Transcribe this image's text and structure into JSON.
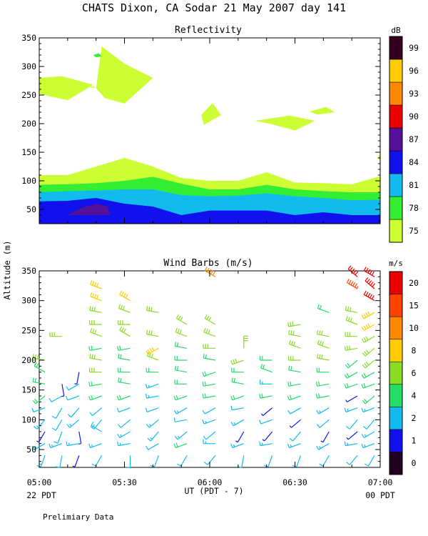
{
  "header": {
    "title": "CHATS Dixon, CA  Sodar  21 May 2007  day 141"
  },
  "footer": {
    "left_date": "22 PDT",
    "right_date": "00 PDT",
    "note": "Prelimiary Data"
  },
  "palette": {
    "reflectivity": [
      "#ccff33",
      "#33ee33",
      "#11bbee",
      "#1111ee",
      "#551199",
      "#ee0000",
      "#ff8800",
      "#ffcc00",
      "#330022"
    ],
    "wind": [
      "#220022",
      "#1111ee",
      "#11bbee",
      "#22dd66",
      "#88dd22",
      "#ffcc00",
      "#ff8800",
      "#ff4400",
      "#ee0000"
    ]
  },
  "chart_data": [
    {
      "type": "heatmap",
      "title": "Reflectivity",
      "xlabel": "UT  (PDT - 7)",
      "ylabel": "Altitude  (m)",
      "x_range": [
        "05:00",
        "07:00"
      ],
      "ylim": [
        25,
        350
      ],
      "yticks": [
        50,
        100,
        150,
        200,
        250,
        300,
        350
      ],
      "xticks": [
        "05:00",
        "05:30",
        "06:00",
        "06:30",
        "07:00"
      ],
      "colorbar": {
        "unit": "dB",
        "levels": [
          75,
          78,
          81,
          84,
          87,
          90,
          93,
          96,
          99
        ]
      },
      "bands": [
        {
          "level": 75,
          "top": [
            [
              0,
              110
            ],
            [
              10,
              110
            ],
            [
              20,
              125
            ],
            [
              30,
              140
            ],
            [
              40,
              125
            ],
            [
              50,
              105
            ],
            [
              60,
              100
            ],
            [
              70,
              100
            ],
            [
              80,
              115
            ],
            [
              90,
              97
            ],
            [
              100,
              96
            ],
            [
              110,
              94
            ],
            [
              120,
              108
            ]
          ]
        },
        {
          "level": 78,
          "top": [
            [
              0,
              93
            ],
            [
              10,
              94
            ],
            [
              20,
              96
            ],
            [
              30,
              100
            ],
            [
              40,
              107
            ],
            [
              50,
              95
            ],
            [
              60,
              85
            ],
            [
              70,
              85
            ],
            [
              80,
              93
            ],
            [
              90,
              85
            ],
            [
              100,
              82
            ],
            [
              110,
              80
            ],
            [
              120,
              80
            ]
          ]
        },
        {
          "level": 81,
          "top": [
            [
              0,
              80
            ],
            [
              10,
              82
            ],
            [
              20,
              83
            ],
            [
              30,
              85
            ],
            [
              40,
              85
            ],
            [
              50,
              75
            ],
            [
              60,
              73
            ],
            [
              70,
              74
            ],
            [
              80,
              78
            ],
            [
              90,
              73
            ],
            [
              100,
              70
            ],
            [
              110,
              66
            ],
            [
              120,
              67
            ]
          ]
        },
        {
          "level": 84,
          "top": [
            [
              0,
              64
            ],
            [
              10,
              65
            ],
            [
              20,
              70
            ],
            [
              30,
              60
            ],
            [
              40,
              55
            ],
            [
              50,
              40
            ],
            [
              60,
              48
            ],
            [
              70,
              48
            ],
            [
              80,
              48
            ],
            [
              90,
              40
            ],
            [
              100,
              45
            ],
            [
              110,
              40
            ],
            [
              120,
              40
            ]
          ]
        }
      ],
      "patches": [
        {
          "level": 87,
          "points": [
            [
              10,
              40
            ],
            [
              15,
              53
            ],
            [
              20,
              60
            ],
            [
              24,
              55
            ],
            [
              25,
              40
            ]
          ]
        },
        {
          "level": 75,
          "points": [
            [
              0,
              280
            ],
            [
              10,
              270
            ],
            [
              20,
              262
            ],
            [
              19,
              265
            ],
            [
              0,
              255
            ]
          ]
        },
        {
          "level": 75,
          "points": [
            [
              20,
              262
            ],
            [
              21,
              300
            ],
            [
              22,
              335
            ],
            [
              30,
              305
            ],
            [
              40,
              280
            ],
            [
              30,
              235
            ],
            [
              23,
              245
            ]
          ]
        },
        {
          "level": 75,
          "points": [
            [
              0,
              280
            ],
            [
              8,
              283
            ],
            [
              19,
              268
            ],
            [
              10,
              241
            ],
            [
              0,
              252
            ]
          ]
        },
        {
          "level": 75,
          "points": [
            [
              57,
              215
            ],
            [
              61,
              236
            ],
            [
              64,
              215
            ],
            [
              58,
              198
            ]
          ]
        },
        {
          "level": 75,
          "points": [
            [
              76,
              205
            ],
            [
              88,
              214
            ],
            [
              97,
              205
            ],
            [
              90,
              188
            ],
            [
              81,
              200
            ]
          ]
        },
        {
          "level": 75,
          "points": [
            [
              95,
              221
            ],
            [
              101,
              229
            ],
            [
              104,
              220
            ],
            [
              98,
              216
            ]
          ]
        },
        {
          "level": 75,
          "points": [
            [
              119,
              140
            ],
            [
              120,
              148
            ],
            [
              120,
              135
            ]
          ]
        },
        {
          "level": 78,
          "points": [
            [
              19,
              320
            ],
            [
              21,
              323
            ],
            [
              22,
              318
            ],
            [
              20,
              316
            ]
          ]
        }
      ]
    },
    {
      "type": "scatter",
      "title": "Wind Barbs (m/s)",
      "xlabel": "UT  (PDT - 7)",
      "ylabel": "Altitude  (m)",
      "x_range": [
        "05:00",
        "07:00"
      ],
      "ylim": [
        20,
        350
      ],
      "yticks": [
        50,
        100,
        150,
        200,
        250,
        300,
        350
      ],
      "xticks": [
        "05:00",
        "05:30",
        "06:00",
        "06:30",
        "07:00"
      ],
      "colorbar": {
        "unit": "m/s",
        "levels": [
          0,
          1,
          2,
          4,
          6,
          8,
          10,
          15,
          20
        ]
      },
      "columns_minutes": [
        2,
        8,
        14,
        22,
        32,
        42,
        52,
        62,
        72,
        82,
        92,
        102,
        112,
        118
      ],
      "altitudes_m": [
        40,
        60,
        80,
        100,
        120,
        140,
        160,
        180,
        200,
        220,
        240,
        260,
        280,
        300,
        320,
        340
      ],
      "speed_columns_ms": [
        [
          3,
          3,
          1,
          3,
          2,
          4,
          4,
          4,
          6,
          0,
          0,
          0,
          0,
          0,
          0,
          0
        ],
        [
          2,
          3,
          2,
          2,
          2,
          2,
          1,
          0,
          0,
          0,
          6,
          0,
          0,
          0,
          0,
          0
        ],
        [
          1,
          3,
          1,
          3,
          2,
          2,
          2,
          1,
          0,
          0,
          0,
          0,
          0,
          0,
          0,
          0
        ],
        [
          2,
          3,
          3,
          2,
          2,
          4,
          4,
          6,
          6,
          4,
          6,
          6,
          6,
          8,
          8,
          0
        ],
        [
          2,
          3,
          3,
          2,
          2,
          4,
          4,
          4,
          4,
          4,
          6,
          6,
          6,
          8,
          0,
          0
        ],
        [
          2,
          2,
          3,
          3,
          2,
          3,
          3,
          4,
          6,
          8,
          6,
          0,
          6,
          0,
          0,
          0
        ],
        [
          2,
          4,
          3,
          2,
          3,
          4,
          4,
          4,
          4,
          4,
          6,
          6,
          0,
          0,
          0,
          0
        ],
        [
          2,
          3,
          2,
          3,
          2,
          4,
          4,
          4,
          4,
          6,
          6,
          6,
          0,
          0,
          0,
          10
        ],
        [
          2,
          3,
          1,
          3,
          2,
          4,
          4,
          4,
          6,
          6,
          0,
          0,
          0,
          0,
          0,
          0
        ],
        [
          2,
          3,
          1,
          2,
          1,
          4,
          3,
          4,
          4,
          0,
          0,
          0,
          0,
          0,
          0,
          0
        ],
        [
          2,
          3,
          2,
          1,
          2,
          4,
          4,
          4,
          6,
          6,
          6,
          6,
          0,
          0,
          0,
          0
        ],
        [
          2,
          3,
          1,
          2,
          3,
          4,
          4,
          4,
          6,
          6,
          6,
          0,
          4,
          0,
          0,
          0
        ],
        [
          2,
          3,
          1,
          2,
          3,
          1,
          4,
          4,
          4,
          6,
          6,
          6,
          6,
          0,
          15,
          20
        ],
        [
          2,
          3,
          3,
          2,
          3,
          4,
          4,
          4,
          6,
          6,
          6,
          8,
          8,
          20,
          20,
          20
        ]
      ],
      "direction_columns_deg": [
        [
          200,
          240,
          210,
          220,
          250,
          230,
          280,
          300,
          280,
          0,
          0,
          0,
          0,
          0,
          0,
          0
        ],
        [
          190,
          250,
          200,
          210,
          210,
          240,
          170,
          0,
          0,
          0,
          270,
          0,
          0,
          0,
          0,
          0
        ],
        [
          200,
          260,
          170,
          230,
          220,
          250,
          240,
          190,
          0,
          0,
          0,
          0,
          0,
          0,
          0,
          0
        ],
        [
          210,
          250,
          300,
          220,
          230,
          250,
          260,
          270,
          280,
          260,
          290,
          270,
          280,
          290,
          290,
          0
        ],
        [
          180,
          260,
          240,
          230,
          250,
          250,
          280,
          270,
          280,
          260,
          300,
          270,
          290,
          300,
          0,
          0
        ],
        [
          200,
          240,
          220,
          230,
          250,
          260,
          250,
          270,
          290,
          240,
          280,
          0,
          280,
          0,
          0,
          0
        ],
        [
          210,
          250,
          230,
          260,
          240,
          250,
          270,
          280,
          270,
          280,
          290,
          300,
          0,
          0,
          0,
          0
        ],
        [
          220,
          270,
          230,
          250,
          240,
          260,
          260,
          250,
          280,
          270,
          290,
          300,
          0,
          0,
          0,
          300
        ],
        [
          190,
          250,
          210,
          240,
          260,
          250,
          280,
          270,
          250,
          0,
          0,
          0,
          0,
          0,
          0,
          0
        ],
        [
          200,
          260,
          220,
          250,
          230,
          260,
          270,
          290,
          270,
          0,
          0,
          0,
          0,
          0,
          0,
          0
        ],
        [
          200,
          250,
          220,
          230,
          240,
          250,
          260,
          280,
          270,
          290,
          280,
          260,
          0,
          0,
          0,
          0
        ],
        [
          210,
          240,
          210,
          230,
          240,
          260,
          260,
          270,
          280,
          290,
          280,
          0,
          290,
          0,
          0,
          0
        ],
        [
          220,
          260,
          230,
          220,
          250,
          240,
          250,
          240,
          230,
          260,
          270,
          290,
          280,
          0,
          300,
          310
        ],
        [
          210,
          250,
          240,
          220,
          250,
          230,
          250,
          240,
          230,
          230,
          240,
          240,
          240,
          300,
          310,
          300
        ]
      ]
    }
  ]
}
